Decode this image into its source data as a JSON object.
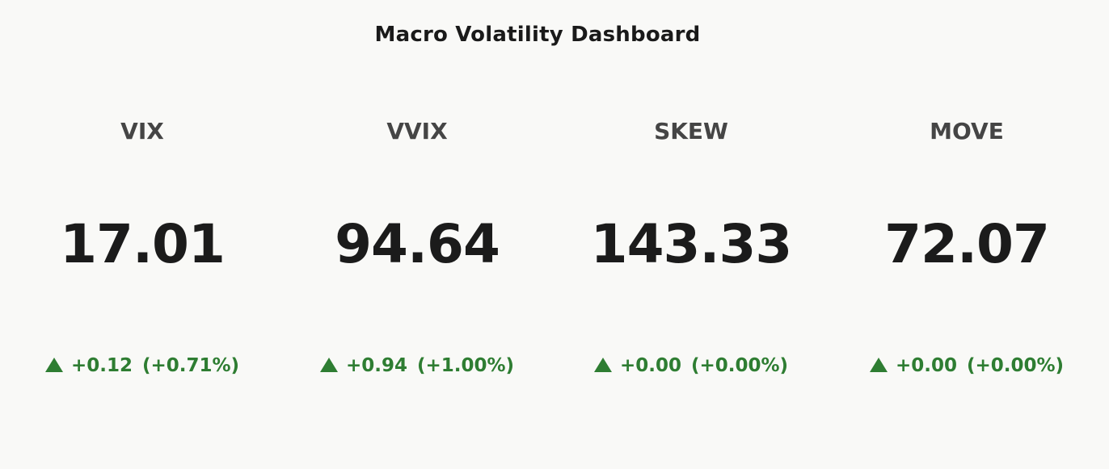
{
  "dashboard": {
    "title": "Macro Volatility Dashboard",
    "colors": {
      "background": "#f9f9f7",
      "positive": "#2e7d32",
      "label": "#454545",
      "value": "#1b1b1b"
    },
    "tiles": [
      {
        "label": "VIX",
        "value": "17.01",
        "direction": "up",
        "arrow_icon": "triangle-up-icon",
        "change": "+0.12",
        "change_pct": "(+0.71%)"
      },
      {
        "label": "VVIX",
        "value": "94.64",
        "direction": "up",
        "arrow_icon": "triangle-up-icon",
        "change": "+0.94",
        "change_pct": "(+1.00%)"
      },
      {
        "label": "SKEW",
        "value": "143.33",
        "direction": "up",
        "arrow_icon": "triangle-up-icon",
        "change": "+0.00",
        "change_pct": "(+0.00%)"
      },
      {
        "label": "MOVE",
        "value": "72.07",
        "direction": "up",
        "arrow_icon": "triangle-up-icon",
        "change": "+0.00",
        "change_pct": "(+0.00%)"
      }
    ]
  }
}
